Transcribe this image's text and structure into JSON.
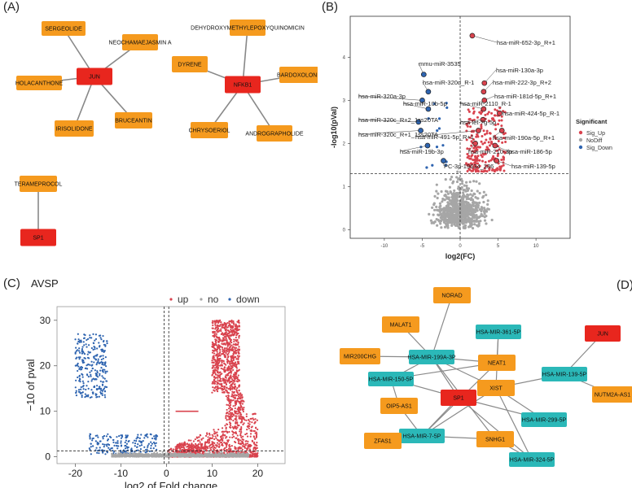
{
  "panels": {
    "a": "(A)",
    "b": "(B)",
    "c": "(C)",
    "d": "(D)"
  },
  "colors": {
    "hub": "#e8261e",
    "drug": "#f59a1e",
    "mirna": "#2bb8b8",
    "edge": "#888888",
    "up": "#d9434e",
    "nodiff": "#a6a6a6",
    "down": "#2e64b0"
  },
  "network_a": {
    "hubs": [
      "JUN",
      "NFKB1",
      "SP1"
    ],
    "compounds": [
      "SERGEOLIDE",
      "NEOCHAMAEJASMIN A",
      "HOLACANTHONE",
      "IRISOLIDONE",
      "BRUCEANTIN",
      "DEHYDROXYMETHYLEPOXYQUINOMICIN",
      "DYRENE",
      "BARDOXOLONE",
      "CHRYSOERIOL",
      "ANDROGRAPHOLIDE",
      "TERAMEPROCOL"
    ],
    "edges": [
      [
        "JUN",
        "SERGEOLIDE"
      ],
      [
        "JUN",
        "NEOCHAMAEJASMIN A"
      ],
      [
        "JUN",
        "HOLACANTHONE"
      ],
      [
        "JUN",
        "IRISOLIDONE"
      ],
      [
        "JUN",
        "BRUCEANTIN"
      ],
      [
        "NFKB1",
        "DEHYDROXYMETHYLEPOXYQUINOMICIN"
      ],
      [
        "NFKB1",
        "DYRENE"
      ],
      [
        "NFKB1",
        "BARDOXOLONE"
      ],
      [
        "NFKB1",
        "CHRYSOERIOL"
      ],
      [
        "NFKB1",
        "ANDROGRAPHOLIDE"
      ],
      [
        "SP1",
        "TERAMEPROCOL"
      ]
    ]
  },
  "network_d": {
    "hubs": [
      "SP1",
      "JUN"
    ],
    "lncrnas": [
      "NORAD",
      "MALAT1",
      "MIR200CHG",
      "NEAT1",
      "XIST",
      "OIP5-AS1",
      "ZFAS1",
      "SNHG1",
      "NUTM2A-AS1"
    ],
    "mirnas": [
      "HSA-MIR-361-5P",
      "HSA-MIR-199A-3P",
      "HSA-MIR-150-5P",
      "HSA-MIR-139-5P",
      "HSA-MIR-299-5P",
      "HSA-MIR-7-5P",
      "HSA-MIR-324-5P"
    ],
    "edges": [
      [
        "MALAT1",
        "HSA-MIR-199A-3P"
      ],
      [
        "MIR200CHG",
        "HSA-MIR-199A-3P"
      ],
      [
        "NORAD",
        "HSA-MIR-199A-3P"
      ],
      [
        "NEAT1",
        "HSA-MIR-199A-3P"
      ],
      [
        "NEAT1",
        "HSA-MIR-150-5P"
      ],
      [
        "NEAT1",
        "HSA-MIR-361-5P"
      ],
      [
        "XIST",
        "HSA-MIR-361-5P"
      ],
      [
        "XIST",
        "HSA-MIR-139-5P"
      ],
      [
        "XIST",
        "HSA-MIR-299-5P"
      ],
      [
        "XIST",
        "HSA-MIR-7-5P"
      ],
      [
        "XIST",
        "HSA-MIR-324-5P"
      ],
      [
        "XIST",
        "HSA-MIR-199A-3P"
      ],
      [
        "JUN",
        "HSA-MIR-139-5P"
      ],
      [
        "NUTM2A-AS1",
        "HSA-MIR-139-5P"
      ],
      [
        "SP1",
        "HSA-MIR-150-5P"
      ],
      [
        "SP1",
        "HSA-MIR-199A-3P"
      ],
      [
        "SP1",
        "HSA-MIR-7-5P"
      ],
      [
        "SP1",
        "HSA-MIR-324-5P"
      ],
      [
        "SP1",
        "HSA-MIR-299-5P"
      ],
      [
        "OIP5-AS1",
        "HSA-MIR-150-5P"
      ],
      [
        "OIP5-AS1",
        "HSA-MIR-7-5P"
      ],
      [
        "ZFAS1",
        "HSA-MIR-7-5P"
      ],
      [
        "SNHG1",
        "HSA-MIR-7-5P"
      ],
      [
        "SNHG1",
        "HSA-MIR-199A-3P"
      ],
      [
        "SNHG1",
        "HSA-MIR-324-5P"
      ],
      [
        "HSA-MIR-150-5P",
        "HSA-MIR-199A-3P"
      ],
      [
        "NEAT1",
        "HSA-MIR-7-5P"
      ]
    ]
  },
  "chart_data": [
    {
      "type": "scatter",
      "panel": "B",
      "title": "",
      "xlabel": "log2(FC)",
      "ylabel": "-log10(pVal)",
      "xlim": [
        -14.5,
        14.5
      ],
      "ylim": [
        -0.2,
        4.95
      ],
      "xticks": [
        -10,
        -5,
        0,
        5,
        10
      ],
      "yticks": [
        0,
        1,
        2,
        3,
        4
      ],
      "hline": 1.3,
      "vline": 0,
      "legend": {
        "title": "Significant",
        "entries": [
          "Sig_Up",
          "NoDiff",
          "Sig_Down"
        ],
        "position": "right"
      },
      "labeled_points": [
        {
          "label": "hsa-miR-652-3p_R+1",
          "x": 1.6,
          "y": 4.5
        },
        {
          "label": "mmu-miR-3535",
          "x": -4.8,
          "y": 3.6
        },
        {
          "label": "hsa-miR-130a-3p",
          "x": 3.2,
          "y": 3.4
        },
        {
          "label": "hsa-miR-320d_R-1",
          "x": -4.2,
          "y": 3.2
        },
        {
          "label": "hsa-miR-222-3p_R+2",
          "x": 3.1,
          "y": 3.2
        },
        {
          "label": "hsa-miR-181d-5p_R+1",
          "x": 3.2,
          "y": 3.0
        },
        {
          "label": "hsa-miR-320a-3p",
          "x": -5.0,
          "y": 3.0
        },
        {
          "label": "hsa-miR-10b-5p",
          "x": -4.2,
          "y": 2.8
        },
        {
          "label": "hsa-miR-2110_R-1",
          "x": 3.1,
          "y": 2.8
        },
        {
          "label": "hsa-miR-424-5p_R-1",
          "x": 5.2,
          "y": 2.7
        },
        {
          "label": "hsa-miR-320c_R+2_1ss20TA",
          "x": -5.5,
          "y": 2.5
        },
        {
          "label": "hsa-let-7g-5p",
          "x": 3.0,
          "y": 2.55
        },
        {
          "label": "hsa-miR-320c_R+1_1ss20TA",
          "x": -5.2,
          "y": 2.3
        },
        {
          "label": "hsa-miR-491-5p_R+1",
          "x": 2.4,
          "y": 2.3
        },
        {
          "label": "hsa-miR-190a-5p_R+1",
          "x": 5.5,
          "y": 2.3
        },
        {
          "label": "hsa-miR-19b-3p",
          "x": -4.3,
          "y": 1.95
        },
        {
          "label": "hsa-miR-210-3p",
          "x": 2.0,
          "y": 2.0
        },
        {
          "label": "hsa-miR-186-5p",
          "x": 4.6,
          "y": 1.95
        },
        {
          "label": "PC-3p-19634_286",
          "x": -2.2,
          "y": 1.6
        },
        {
          "label": "hsa-miR-139-5p",
          "x": 4.8,
          "y": 1.6
        }
      ]
    },
    {
      "type": "scatter",
      "panel": "C",
      "title": "AVSP",
      "xlabel": "log2 of Fold change",
      "ylabel": "−10 of pval",
      "xlim": [
        -24,
        26
      ],
      "ylim": [
        -1.5,
        33
      ],
      "xticks": [
        -20,
        -10,
        0,
        10,
        20
      ],
      "yticks": [
        0,
        10,
        20,
        30
      ],
      "legend": {
        "entries": [
          "up",
          "no",
          "down"
        ],
        "position": "top"
      },
      "hline": 1.3,
      "vlines": [
        -0.5,
        0.5
      ],
      "clusters": [
        {
          "group": "down",
          "x_range": [
            -20,
            -13
          ],
          "y_range": [
            13,
            27
          ]
        },
        {
          "group": "down",
          "x_range": [
            -17,
            -2
          ],
          "y_range": [
            0.5,
            5
          ]
        },
        {
          "group": "up",
          "x_range": [
            10,
            16
          ],
          "y_range": [
            14,
            30
          ]
        },
        {
          "group": "up",
          "x_range": [
            13,
            17
          ],
          "y_range": [
            8,
            14
          ]
        },
        {
          "group": "up",
          "x_range": [
            0,
            20
          ],
          "y_range": [
            0,
            9
          ]
        },
        {
          "group": "up",
          "x_range": [
            2,
            8
          ],
          "y_range": [
            0.5,
            3
          ]
        },
        {
          "group": "no",
          "x_range": [
            -12,
            18
          ],
          "y_range": [
            0,
            1.5
          ]
        }
      ]
    }
  ]
}
